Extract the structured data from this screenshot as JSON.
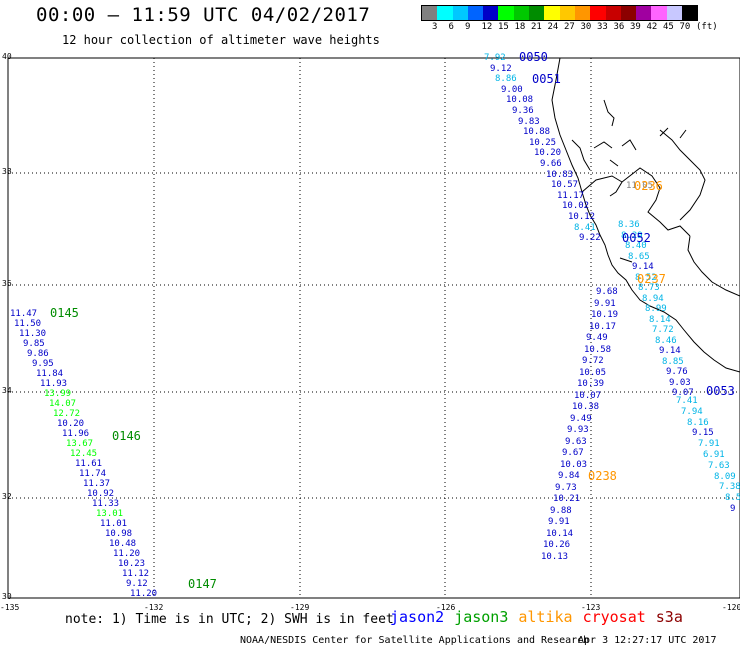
{
  "header": {
    "title": "00:00 – 11:59 UTC 04/02/2017",
    "subtitle": "12 hour collection of altimeter wave heights"
  },
  "legend": {
    "colors": [
      "#808080",
      "#00ffff",
      "#00c8ff",
      "#0064ff",
      "#0000c8",
      "#00ff00",
      "#00c800",
      "#008c00",
      "#ffff00",
      "#ffc800",
      "#ff9600",
      "#ff0000",
      "#c80000",
      "#8c0000",
      "#a000a0",
      "#ff64ff",
      "#c8c8ff",
      "#000000"
    ],
    "labels": [
      "3",
      "6",
      "9",
      "12",
      "15",
      "18",
      "21",
      "24",
      "27",
      "30",
      "33",
      "36",
      "39",
      "42",
      "45",
      "70",
      "(ft)"
    ]
  },
  "axes": {
    "lat_labels": [
      "40",
      "38",
      "36",
      "34",
      "32",
      "30"
    ],
    "lon_labels": [
      "-135",
      "-132",
      "-129",
      "-126",
      "-123",
      "-120"
    ]
  },
  "tracks": [
    {
      "id": "0050",
      "color": "#0000c8",
      "label_color": "#0000c8"
    },
    {
      "id": "0051",
      "color": "#0000c8",
      "label_color": "#0000c8"
    },
    {
      "id": "0052",
      "color": "#0000c8",
      "label_color": "#0000c8"
    },
    {
      "id": "0053",
      "color": "#0000c8",
      "label_color": "#0000c8"
    },
    {
      "id": "0145",
      "color": "#008c00",
      "label_color": "#008c00"
    },
    {
      "id": "0146",
      "color": "#008c00",
      "label_color": "#008c00"
    },
    {
      "id": "0147",
      "color": "#008c00",
      "label_color": "#008c00"
    },
    {
      "id": "0236",
      "color": "#ff9600",
      "label_color": "#ff9600"
    },
    {
      "id": "0237",
      "color": "#ff9600",
      "label_color": "#ff9600"
    },
    {
      "id": "0238",
      "color": "#ff9600",
      "label_color": "#ff9600"
    }
  ],
  "values": {
    "t0050": [
      "7.92",
      "9.12",
      "8.86",
      "9.00",
      "10.08",
      "9.36",
      "9.83",
      "10.88",
      "10.25",
      "10.20",
      "9.66",
      "10.83",
      "10.57",
      "11.17",
      "10.02",
      "10.12",
      "8.41",
      "9.22"
    ],
    "t0052a": [
      "8.36",
      "8.29",
      "8.40",
      "8.65",
      "9.14",
      "8.52",
      "8.73",
      "8.94",
      "8.99",
      "8.14",
      "7.72",
      "8.46",
      "9.14",
      "8.85",
      "9.76",
      "9.03",
      "9.07"
    ],
    "t0052b": [
      "9.68",
      "9.91",
      "10.19",
      "10.17",
      "9.49",
      "10.58",
      "9.72",
      "10.05",
      "10.39",
      "10.07",
      "10.38",
      "9.49",
      "9.93",
      "9.63",
      "9.67",
      "10.03",
      "9.84",
      "9.73",
      "10.21",
      "9.88",
      "9.91",
      "10.14",
      "10.26",
      "10.13"
    ],
    "t0053": [
      "7.41",
      "7.94",
      "8.16",
      "9.15",
      "7.91",
      "6.91",
      "7.63",
      "8.09",
      "7.38",
      "8.5",
      "9"
    ],
    "t0145": [
      "11.47",
      "11.50",
      "11.30",
      "9.85",
      "9.86",
      "9.95",
      "11.84",
      "11.93",
      "13.99",
      "14.07",
      "12.72",
      "10.20",
      "11.96",
      "13.67",
      "12.45",
      "11.61",
      "11.74",
      "11.37",
      "10.92",
      "11.33",
      "13.01",
      "11.01",
      "10.98",
      "10.48",
      "11.20",
      "10.23",
      "11.12",
      "9.12",
      "11.20"
    ],
    "t0236": [
      "11.05"
    ]
  },
  "footer": {
    "note": "note: 1) Time is in UTC; 2) SWH is in feet",
    "sat_names": [
      {
        "name": "jason2",
        "color": "#0000ff"
      },
      {
        "name": "jason3",
        "color": "#00a000"
      },
      {
        "name": "altika",
        "color": "#ff9600"
      },
      {
        "name": "cryosat",
        "color": "#ff0000"
      },
      {
        "name": "s3a",
        "color": "#8c0000"
      }
    ],
    "credit": "NOAA/NESDIS Center for Satellite Applications and Research",
    "stamp": "Apr  3 12:27:17 UTC 2017"
  }
}
